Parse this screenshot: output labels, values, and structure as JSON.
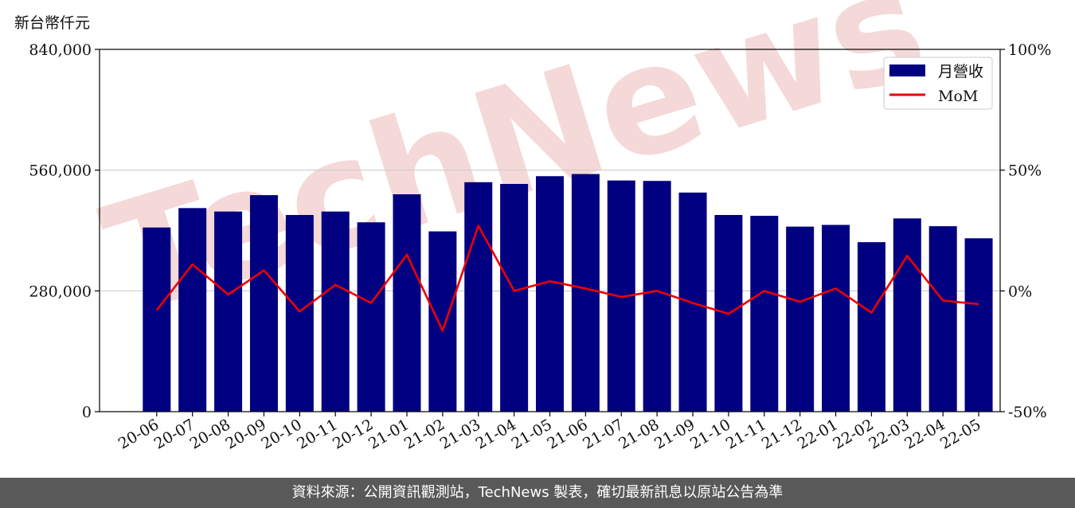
{
  "unit_label": "新台幣仟元",
  "footer_text": "資料來源：公開資訊觀測站，TechNews 製表，確切最新訊息以原站公告為準",
  "watermark_text": "TechNews",
  "colors": {
    "bar": "#000080",
    "line": "#ee0000",
    "grid": "#cccccc",
    "watermark": "#f5d8d8"
  },
  "chart_data": {
    "type": "bar",
    "categories": [
      "20-06",
      "20-07",
      "20-08",
      "20-09",
      "20-10",
      "20-11",
      "20-12",
      "21-01",
      "21-02",
      "21-03",
      "21-04",
      "21-05",
      "21-06",
      "21-07",
      "21-08",
      "21-09",
      "21-10",
      "21-11",
      "21-12",
      "22-01",
      "22-02",
      "22-03",
      "22-04",
      "22-05"
    ],
    "series": [
      {
        "name": "月營收",
        "axis": "left",
        "type": "bar",
        "values": [
          427000,
          472000,
          464000,
          502000,
          456000,
          464000,
          439000,
          504000,
          418000,
          532000,
          528000,
          546000,
          551000,
          536000,
          535000,
          508000,
          456000,
          454000,
          429000,
          433000,
          393000,
          448000,
          430000,
          402000
        ]
      },
      {
        "name": "MoM",
        "axis": "right",
        "type": "line",
        "unit": "%",
        "values": [
          -8,
          11,
          -1.5,
          8.5,
          -8.5,
          2.5,
          -5,
          15,
          -16.5,
          27,
          0,
          4,
          1,
          -2.5,
          0,
          -5,
          -9.5,
          0,
          -4.5,
          1,
          -9,
          14.5,
          -4,
          -5.5
        ]
      }
    ],
    "left_axis": {
      "ylim": [
        0,
        840000
      ],
      "ticks": [
        "0",
        "280,000",
        "560,000",
        "840,000"
      ]
    },
    "right_axis": {
      "ylim": [
        -50,
        100
      ],
      "ticks": [
        "-50%",
        "0%",
        "50%",
        "100%"
      ]
    },
    "grid": "horizontal",
    "legend_position": "top-right"
  }
}
